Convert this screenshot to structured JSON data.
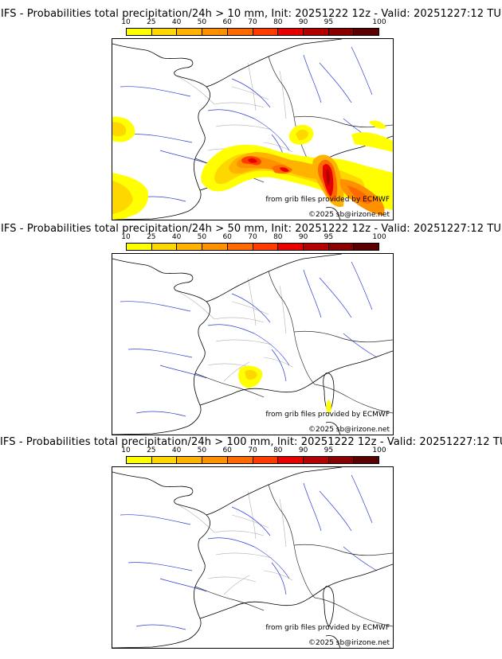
{
  "colorbar": {
    "labels": [
      "10",
      "25",
      "40",
      "50",
      "60",
      "70",
      "80",
      "90",
      "95",
      "100"
    ],
    "colors": [
      "#ffff00",
      "#ffd700",
      "#ffb300",
      "#ff9100",
      "#ff6a00",
      "#ff3b00",
      "#e60000",
      "#b30000",
      "#8a0000",
      "#5a0000"
    ]
  },
  "panels": [
    {
      "title": "IFS - Probabilities total precipitation/24h > 10 mm, Init: 20251222 12z - Valid: 20251227:12 TU",
      "threshold_mm": 10
    },
    {
      "title": "IFS - Probabilities total precipitation/24h > 50 mm, Init: 20251222 12z - Valid: 20251227:12 TU",
      "threshold_mm": 50
    },
    {
      "title": "IFS - Probabilities total precipitation/24h > 100 mm, Init: 20251222 12z - Valid: 20251227:12 TU",
      "threshold_mm": 100
    }
  ],
  "credits": {
    "source": "from grib files provided by ECMWF",
    "copyright": "©2025 sb@irizone.net"
  }
}
